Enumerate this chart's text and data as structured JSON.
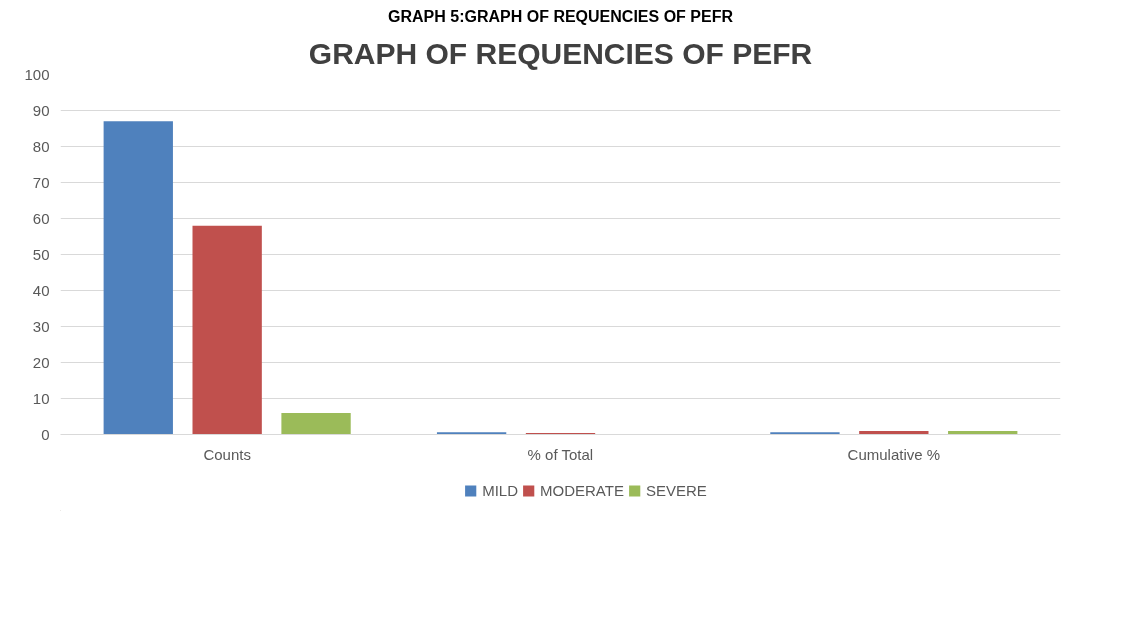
{
  "chart_data": {
    "type": "bar",
    "title": "GRAPH OF REQUENCIES OF PEFR",
    "annotations": [
      "GRAPH 5:GRAPH OF REQUENCIES OF PEFR"
    ],
    "categories": [
      "Counts",
      "% of Total",
      "Cumulative %"
    ],
    "series": [
      {
        "name": "MILD",
        "color": "#4f81bd",
        "values": [
          87,
          0.6,
          0.6
        ]
      },
      {
        "name": "MODERATE",
        "color": "#c0504d",
        "values": [
          58,
          0.4,
          1
        ]
      },
      {
        "name": "SEVERE",
        "color": "#9bbb59",
        "values": [
          6,
          0,
          1
        ]
      }
    ],
    "ylim": [
      0,
      100
    ],
    "yticks": [
      0,
      10,
      20,
      30,
      40,
      50,
      60,
      70,
      80,
      90,
      100
    ],
    "grid": "y",
    "legend": "bottom"
  }
}
